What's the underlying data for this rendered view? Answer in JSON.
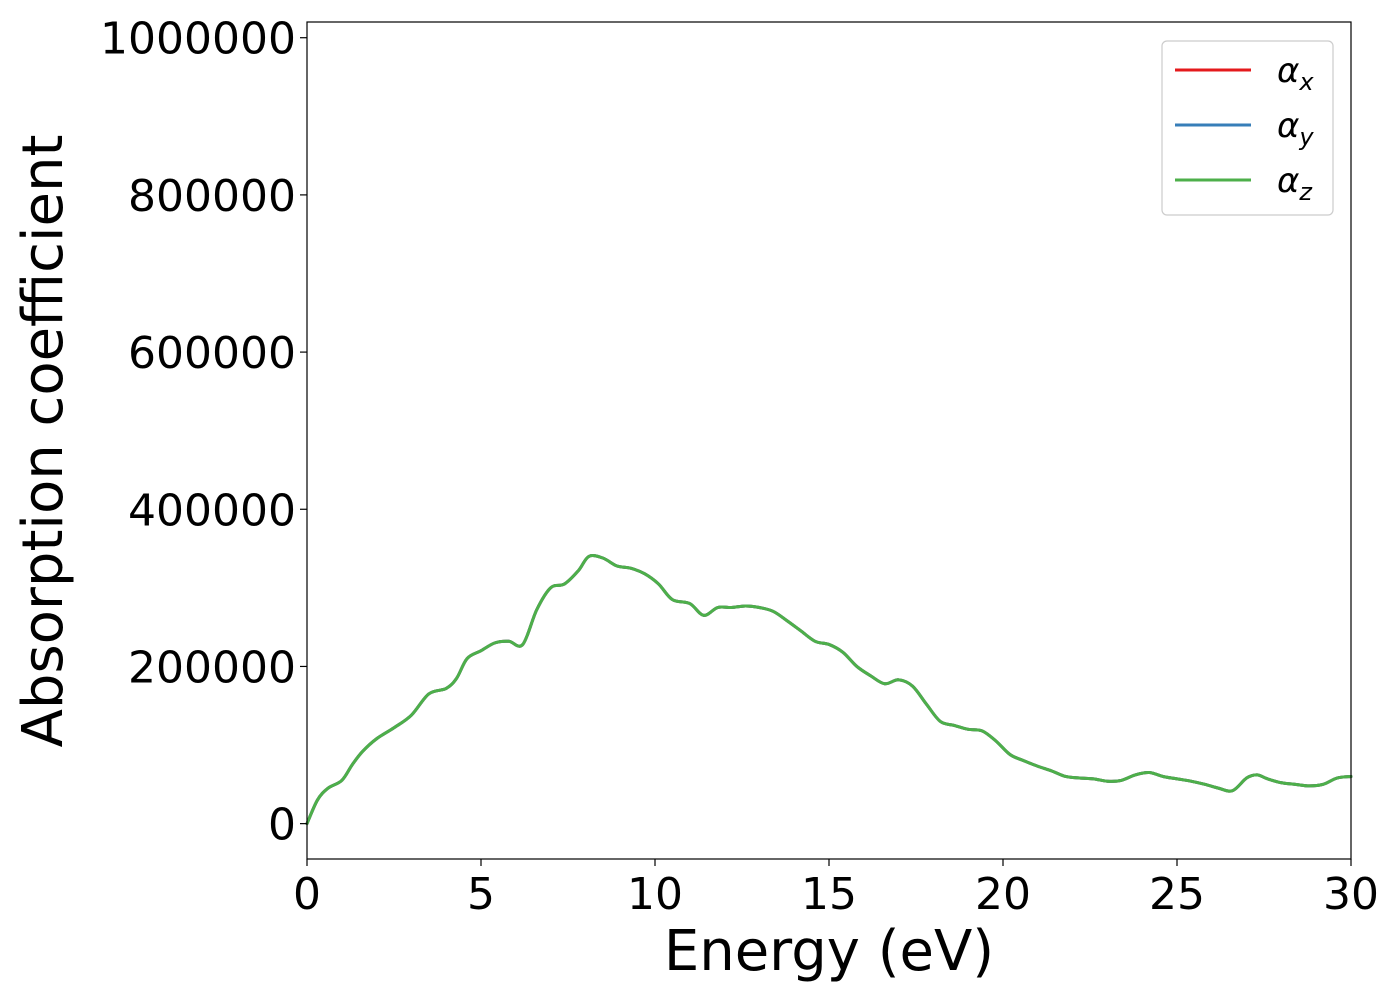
{
  "chart_data": {
    "type": "line",
    "xlabel": "Energy (eV)",
    "ylabel": "Absorption coefficient",
    "xlim": [
      0,
      30
    ],
    "ylim": [
      -45000,
      1020000
    ],
    "xticks": [
      0,
      5,
      10,
      15,
      20,
      25,
      30
    ],
    "xtick_labels": [
      "0",
      "5",
      "10",
      "15",
      "20",
      "25",
      "30"
    ],
    "yticks": [
      0,
      200000,
      400000,
      600000,
      800000,
      1000000
    ],
    "ytick_labels": [
      "0",
      "200000",
      "400000",
      "600000",
      "800000",
      "1000000"
    ],
    "grid": false,
    "legend_position": "top-right",
    "x": [
      0,
      0.3,
      0.6,
      1.0,
      1.3,
      1.6,
      2.0,
      2.5,
      3.0,
      3.5,
      4.0,
      4.3,
      4.6,
      5.0,
      5.4,
      5.8,
      6.2,
      6.6,
      7.0,
      7.4,
      7.8,
      8.1,
      8.5,
      8.9,
      9.3,
      9.7,
      10.1,
      10.5,
      11.0,
      11.4,
      11.8,
      12.2,
      12.6,
      13.0,
      13.4,
      13.8,
      14.2,
      14.6,
      15.0,
      15.4,
      15.8,
      16.2,
      16.6,
      17.0,
      17.4,
      17.8,
      18.2,
      18.6,
      19.0,
      19.4,
      19.8,
      20.2,
      20.6,
      21.0,
      21.4,
      21.8,
      22.2,
      22.6,
      23.0,
      23.4,
      23.8,
      24.2,
      24.6,
      25.0,
      25.4,
      25.8,
      26.2,
      26.6,
      27.0,
      27.3,
      27.6,
      28.0,
      28.4,
      28.8,
      29.2,
      29.6,
      30.0
    ],
    "series": [
      {
        "name": "α_x",
        "color": "#e41a1c",
        "values": [
          0,
          30000,
          45000,
          55000,
          75000,
          92000,
          108000,
          122000,
          138000,
          165000,
          172000,
          185000,
          210000,
          220000,
          230000,
          232000,
          228000,
          272000,
          300000,
          305000,
          322000,
          340000,
          338000,
          328000,
          325000,
          318000,
          305000,
          285000,
          280000,
          265000,
          275000,
          275000,
          277000,
          275000,
          270000,
          258000,
          245000,
          232000,
          228000,
          218000,
          200000,
          188000,
          178000,
          183000,
          175000,
          152000,
          130000,
          125000,
          120000,
          118000,
          105000,
          88000,
          80000,
          73000,
          67000,
          60000,
          58000,
          57000,
          54000,
          55000,
          62000,
          65000,
          60000,
          57000,
          54000,
          50000,
          45000,
          42000,
          58000,
          62000,
          57000,
          52000,
          50000,
          48000,
          50000,
          58000,
          60000
        ]
      },
      {
        "name": "α_y",
        "color": "#377eb8",
        "values": [
          0,
          30000,
          45000,
          55000,
          75000,
          92000,
          108000,
          122000,
          138000,
          165000,
          172000,
          185000,
          210000,
          220000,
          230000,
          232000,
          228000,
          272000,
          300000,
          305000,
          322000,
          340000,
          338000,
          328000,
          325000,
          318000,
          305000,
          285000,
          280000,
          265000,
          275000,
          275000,
          277000,
          275000,
          270000,
          258000,
          245000,
          232000,
          228000,
          218000,
          200000,
          188000,
          178000,
          183000,
          175000,
          152000,
          130000,
          125000,
          120000,
          118000,
          105000,
          88000,
          80000,
          73000,
          67000,
          60000,
          58000,
          57000,
          54000,
          55000,
          62000,
          65000,
          60000,
          57000,
          54000,
          50000,
          45000,
          42000,
          58000,
          62000,
          57000,
          52000,
          50000,
          48000,
          50000,
          58000,
          60000
        ]
      },
      {
        "name": "α_z",
        "color": "#4daf4a",
        "values": [
          0,
          30000,
          45000,
          55000,
          75000,
          92000,
          108000,
          122000,
          138000,
          165000,
          172000,
          185000,
          210000,
          220000,
          230000,
          232000,
          228000,
          272000,
          300000,
          305000,
          322000,
          340000,
          338000,
          328000,
          325000,
          318000,
          305000,
          285000,
          280000,
          265000,
          275000,
          275000,
          277000,
          275000,
          270000,
          258000,
          245000,
          232000,
          228000,
          218000,
          200000,
          188000,
          178000,
          183000,
          175000,
          152000,
          130000,
          125000,
          120000,
          118000,
          105000,
          88000,
          80000,
          73000,
          67000,
          60000,
          58000,
          57000,
          54000,
          55000,
          62000,
          65000,
          60000,
          57000,
          54000,
          50000,
          45000,
          42000,
          58000,
          62000,
          57000,
          52000,
          50000,
          48000,
          50000,
          58000,
          60000
        ]
      }
    ],
    "legend": [
      {
        "symbol": "α",
        "subscript": "x",
        "color": "#e41a1c"
      },
      {
        "symbol": "α",
        "subscript": "y",
        "color": "#377eb8"
      },
      {
        "symbol": "α",
        "subscript": "z",
        "color": "#4daf4a"
      }
    ]
  }
}
